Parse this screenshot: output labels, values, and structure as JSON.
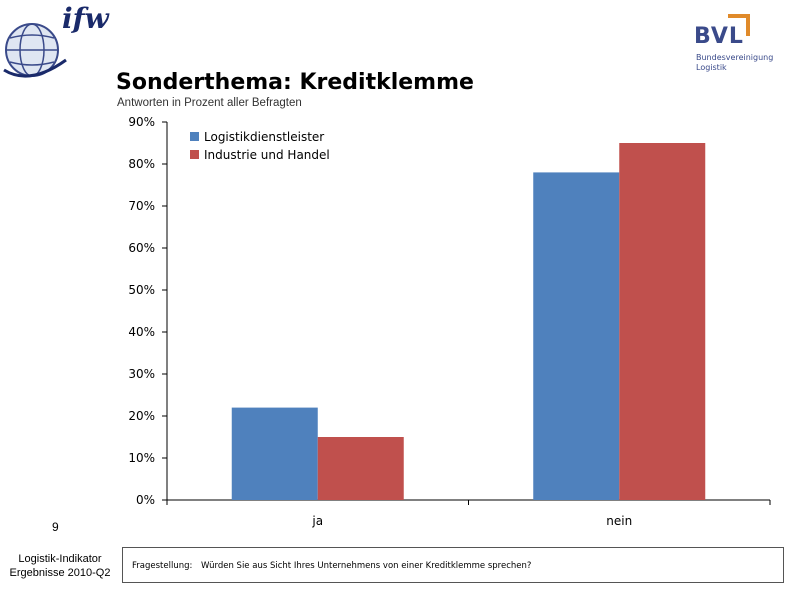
{
  "header": {
    "left_logo_text": "ifw",
    "right_logo_text": "BVL",
    "right_logo_subtitle": "Bundesvereinigung Logistik"
  },
  "title": "Sonderthema: Kreditklemme",
  "subtitle": "Antworten in Prozent aller Befragten",
  "page_number": "9",
  "footer": {
    "line1": "Logistik-Indikator",
    "line2": "Ergebnisse 2010-Q2",
    "question_label": "Fragestellung:",
    "question_text": "Würden Sie aus Sicht Ihres Unternehmens von einer Kreditklemme sprechen?"
  },
  "colors": {
    "series1": "#4f81bd",
    "series2": "#c0504d",
    "logo_blue": "#3a4a8a",
    "logo_orange": "#e08a2a"
  },
  "chart_data": {
    "type": "bar",
    "categories": [
      "ja",
      "nein"
    ],
    "series": [
      {
        "name": "Logistikdienstleister",
        "values": [
          22,
          78
        ]
      },
      {
        "name": "Industrie und Handel",
        "values": [
          15,
          85
        ]
      }
    ],
    "yticks": [
      "0%",
      "10%",
      "20%",
      "30%",
      "40%",
      "50%",
      "60%",
      "70%",
      "80%",
      "90%"
    ],
    "ylim": [
      0,
      90
    ],
    "y_unit": "%",
    "legend_position": "top-left",
    "grid": false
  }
}
